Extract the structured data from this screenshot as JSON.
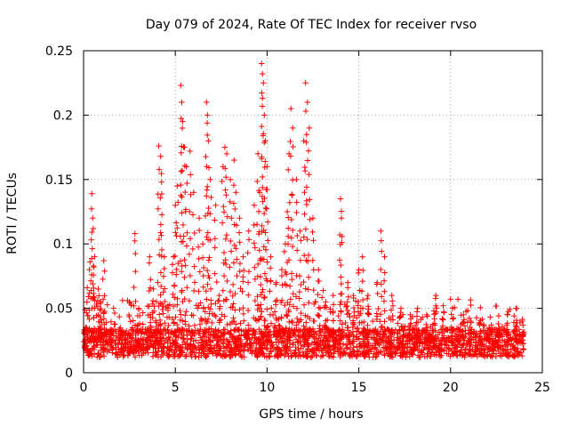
{
  "chart_data": {
    "type": "scatter",
    "title": "Day 079 of 2024, Rate Of TEC Index for receiver rvso",
    "xlabel": "GPS time / hours",
    "ylabel": "ROTI / TECUs",
    "xlim": [
      0,
      25
    ],
    "ylim": [
      0,
      0.25
    ],
    "x_ticks": [
      0,
      5,
      10,
      15,
      20,
      25
    ],
    "y_ticks": [
      0,
      0.05,
      0.1,
      0.15,
      0.2,
      0.25
    ],
    "x_tick_labels": [
      "0",
      "5",
      "10",
      "15",
      "20",
      "25"
    ],
    "y_tick_labels": [
      "0",
      "0.05",
      "0.1",
      "0.15",
      "0.2",
      "0.25"
    ],
    "grid": true,
    "marker": "+",
    "color": "#ff0000",
    "series": [
      {
        "name": "ROTI",
        "points": [
          [
            0.1,
            0.03
          ],
          [
            0.2,
            0.066
          ],
          [
            0.35,
            0.086
          ],
          [
            0.45,
            0.139
          ],
          [
            0.5,
            0.12
          ],
          [
            0.6,
            0.09
          ],
          [
            0.8,
            0.065
          ],
          [
            0.9,
            0.055
          ],
          [
            1.1,
            0.087
          ],
          [
            1.5,
            0.03
          ],
          [
            2.0,
            0.035
          ],
          [
            2.5,
            0.055
          ],
          [
            2.8,
            0.108
          ],
          [
            3.0,
            0.05
          ],
          [
            3.6,
            0.09
          ],
          [
            3.8,
            0.065
          ],
          [
            4.1,
            0.176
          ],
          [
            4.2,
            0.168
          ],
          [
            4.25,
            0.148
          ],
          [
            4.4,
            0.09
          ],
          [
            4.6,
            0.05
          ],
          [
            4.9,
            0.09
          ],
          [
            5.0,
            0.13
          ],
          [
            5.1,
            0.145
          ],
          [
            5.3,
            0.223
          ],
          [
            5.35,
            0.21
          ],
          [
            5.4,
            0.195
          ],
          [
            5.5,
            0.175
          ],
          [
            5.6,
            0.16
          ],
          [
            5.8,
            0.172
          ],
          [
            6.0,
            0.14
          ],
          [
            6.3,
            0.12
          ],
          [
            6.5,
            0.1
          ],
          [
            6.7,
            0.21
          ],
          [
            6.75,
            0.2
          ],
          [
            6.8,
            0.18
          ],
          [
            6.9,
            0.15
          ],
          [
            7.2,
            0.13
          ],
          [
            7.4,
            0.06
          ],
          [
            7.6,
            0.16
          ],
          [
            7.7,
            0.175
          ],
          [
            7.8,
            0.17
          ],
          [
            8.0,
            0.15
          ],
          [
            8.2,
            0.165
          ],
          [
            8.3,
            0.14
          ],
          [
            8.5,
            0.12
          ],
          [
            8.7,
            0.09
          ],
          [
            9.0,
            0.11
          ],
          [
            9.3,
            0.13
          ],
          [
            9.5,
            0.17
          ],
          [
            9.6,
            0.14
          ],
          [
            9.7,
            0.24
          ],
          [
            9.75,
            0.232
          ],
          [
            9.8,
            0.225
          ],
          [
            9.85,
            0.2
          ],
          [
            9.9,
            0.18
          ],
          [
            10.0,
            0.16
          ],
          [
            10.2,
            0.09
          ],
          [
            10.5,
            0.07
          ],
          [
            10.8,
            0.08
          ],
          [
            11.0,
            0.1
          ],
          [
            11.1,
            0.125
          ],
          [
            11.2,
            0.17
          ],
          [
            11.3,
            0.205
          ],
          [
            11.4,
            0.19
          ],
          [
            11.6,
            0.15
          ],
          [
            11.8,
            0.11
          ],
          [
            12.0,
            0.18
          ],
          [
            12.1,
            0.225
          ],
          [
            12.2,
            0.21
          ],
          [
            12.3,
            0.19
          ],
          [
            12.5,
            0.12
          ],
          [
            12.8,
            0.08
          ],
          [
            13.2,
            0.055
          ],
          [
            13.6,
            0.06
          ],
          [
            14.0,
            0.135
          ],
          [
            14.05,
            0.12
          ],
          [
            14.4,
            0.07
          ],
          [
            14.7,
            0.06
          ],
          [
            15.0,
            0.08
          ],
          [
            15.2,
            0.09
          ],
          [
            15.5,
            0.06
          ],
          [
            16.0,
            0.07
          ],
          [
            16.2,
            0.11
          ],
          [
            16.4,
            0.09
          ],
          [
            16.8,
            0.06
          ],
          [
            17.3,
            0.05
          ],
          [
            17.8,
            0.045
          ],
          [
            18.2,
            0.05
          ],
          [
            18.7,
            0.045
          ],
          [
            19.2,
            0.06
          ],
          [
            19.6,
            0.052
          ],
          [
            20.1,
            0.05
          ],
          [
            20.7,
            0.045
          ],
          [
            21.1,
            0.04
          ],
          [
            21.6,
            0.038
          ],
          [
            22.1,
            0.035
          ],
          [
            22.6,
            0.038
          ],
          [
            23.1,
            0.045
          ],
          [
            23.6,
            0.05
          ],
          [
            23.9,
            0.04
          ]
        ]
      }
    ]
  }
}
